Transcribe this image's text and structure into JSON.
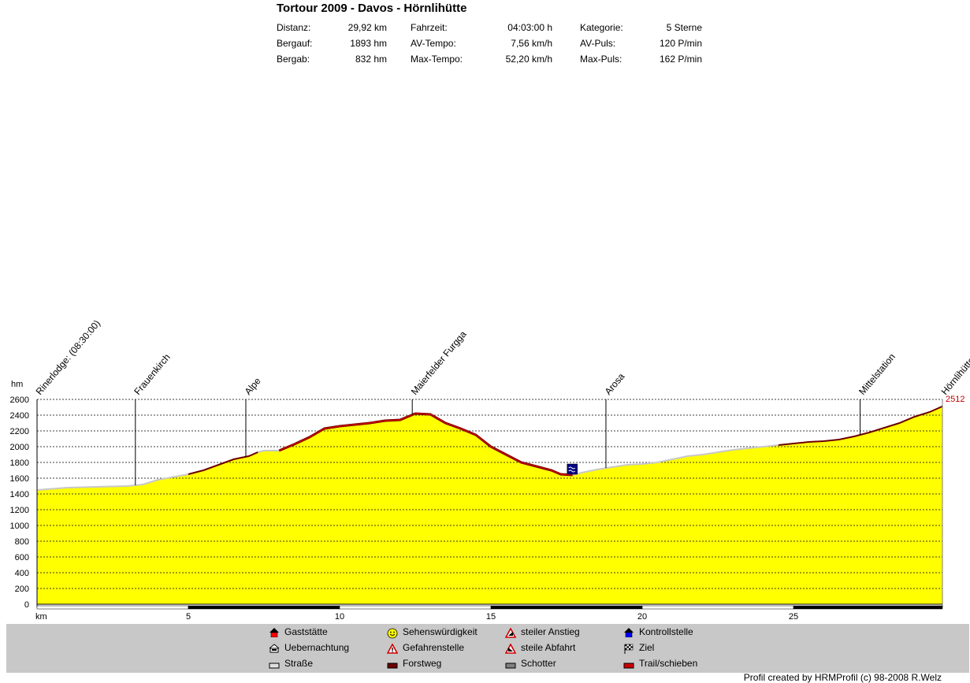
{
  "title": "Tortour 2009 - Davos - Hörnlihütte",
  "stats": [
    [
      {
        "label": "Distanz:",
        "value": "29,92 km"
      },
      {
        "label": "Fahrzeit:",
        "value": "04:03:00 h"
      },
      {
        "label": "Kategorie:",
        "value": "5 Sterne"
      }
    ],
    [
      {
        "label": "Bergauf:",
        "value": "1893 hm"
      },
      {
        "label": "AV-Tempo:",
        "value": "7,56 km/h"
      },
      {
        "label": "AV-Puls:",
        "value": "120 P/min"
      }
    ],
    [
      {
        "label": "Bergab:",
        "value": "832 hm"
      },
      {
        "label": "Max-Tempo:",
        "value": "52,20 km/h"
      },
      {
        "label": "Max-Puls:",
        "value": "162 P/min"
      }
    ]
  ],
  "chart_data": {
    "type": "area",
    "ylabel": "hm",
    "xlabel": "km",
    "ylim": [
      0,
      2600
    ],
    "xlim": [
      0,
      29.92
    ],
    "yticks": [
      0,
      200,
      400,
      600,
      800,
      1000,
      1200,
      1400,
      1600,
      1800,
      2000,
      2200,
      2400,
      2600
    ],
    "xticks": [
      5,
      10,
      15,
      20,
      25
    ],
    "max_label": "2512",
    "fill_color": "#ffff00",
    "profile": [
      [
        0,
        1450
      ],
      [
        1,
        1480
      ],
      [
        2,
        1490
      ],
      [
        3,
        1500
      ],
      [
        3.5,
        1520
      ],
      [
        4,
        1580
      ],
      [
        5,
        1650
      ],
      [
        5.5,
        1700
      ],
      [
        6,
        1770
      ],
      [
        6.5,
        1840
      ],
      [
        7,
        1880
      ],
      [
        7.3,
        1930
      ],
      [
        7.5,
        1950
      ],
      [
        8,
        1950
      ],
      [
        8.5,
        2030
      ],
      [
        9,
        2120
      ],
      [
        9.5,
        2230
      ],
      [
        10,
        2260
      ],
      [
        10.5,
        2280
      ],
      [
        11,
        2300
      ],
      [
        11.5,
        2330
      ],
      [
        12,
        2340
      ],
      [
        12.5,
        2420
      ],
      [
        13,
        2410
      ],
      [
        13.5,
        2300
      ],
      [
        14,
        2230
      ],
      [
        14.5,
        2150
      ],
      [
        15,
        2000
      ],
      [
        15.5,
        1900
      ],
      [
        16,
        1800
      ],
      [
        16.5,
        1750
      ],
      [
        17,
        1700
      ],
      [
        17.3,
        1650
      ],
      [
        17.7,
        1640
      ],
      [
        18,
        1670
      ],
      [
        18.5,
        1710
      ],
      [
        19,
        1740
      ],
      [
        19.5,
        1770
      ],
      [
        20,
        1780
      ],
      [
        20.5,
        1800
      ],
      [
        21,
        1840
      ],
      [
        21.5,
        1880
      ],
      [
        22,
        1900
      ],
      [
        22.5,
        1930
      ],
      [
        23,
        1960
      ],
      [
        23.5,
        1980
      ],
      [
        24,
        2000
      ],
      [
        24.5,
        2020
      ],
      [
        25,
        2040
      ],
      [
        25.5,
        2060
      ],
      [
        26,
        2070
      ],
      [
        26.5,
        2090
      ],
      [
        27,
        2130
      ],
      [
        27.5,
        2180
      ],
      [
        28,
        2240
      ],
      [
        28.5,
        2300
      ],
      [
        29,
        2380
      ],
      [
        29.5,
        2440
      ],
      [
        29.92,
        2512
      ]
    ],
    "surface": [
      {
        "from": 0,
        "to": 5,
        "type": "Straße"
      },
      {
        "from": 5,
        "to": 7.3,
        "type": "Forstweg"
      },
      {
        "from": 7.3,
        "to": 8,
        "type": "Straße"
      },
      {
        "from": 8,
        "to": 17.7,
        "type": "Trail/schieben"
      },
      {
        "from": 17.7,
        "to": 24.5,
        "type": "Straße"
      },
      {
        "from": 24.5,
        "to": 29.92,
        "type": "Forstweg"
      }
    ],
    "waypoints": [
      {
        "km": 0,
        "name": "Rinerlodge: (08:30:00)"
      },
      {
        "km": 3.25,
        "name": "Frauenkirch"
      },
      {
        "km": 6.9,
        "name": "Alpe"
      },
      {
        "km": 12.4,
        "name": "Maierfelder Furgga"
      },
      {
        "km": 18.8,
        "name": "Arosa"
      },
      {
        "km": 27.2,
        "name": "Mittelstation"
      },
      {
        "km": 29.92,
        "name": "Hörnlihütte"
      }
    ],
    "marker": {
      "km": 17.7,
      "type": "Kontrollstelle"
    }
  },
  "legend": [
    {
      "label": "Gaststätte",
      "icon": "house-red-icon"
    },
    {
      "label": "Uebernachtung",
      "icon": "bed-icon"
    },
    {
      "label": "Straße",
      "icon": "road-icon",
      "color": "#e0e0e0"
    },
    {
      "label": "Sehenswürdigkeit",
      "icon": "smiley-icon"
    },
    {
      "label": "Gefahrenstelle",
      "icon": "warning-icon"
    },
    {
      "label": "Forstweg",
      "icon": "forest-road-icon",
      "color": "#6b0000"
    },
    {
      "label": "steiler Anstieg",
      "icon": "steep-climb-icon"
    },
    {
      "label": "steile Abfahrt",
      "icon": "steep-descent-icon"
    },
    {
      "label": "Schotter",
      "icon": "gravel-icon",
      "color": "#808080"
    },
    {
      "label": "Kontrollstelle",
      "icon": "checkpoint-icon"
    },
    {
      "label": "Ziel",
      "icon": "finish-flag-icon"
    },
    {
      "label": "Trail/schieben",
      "icon": "trail-icon",
      "color": "#d00000"
    }
  ],
  "credit": "Profil created by HRMProfil (c) 98-2008 R.Welz"
}
